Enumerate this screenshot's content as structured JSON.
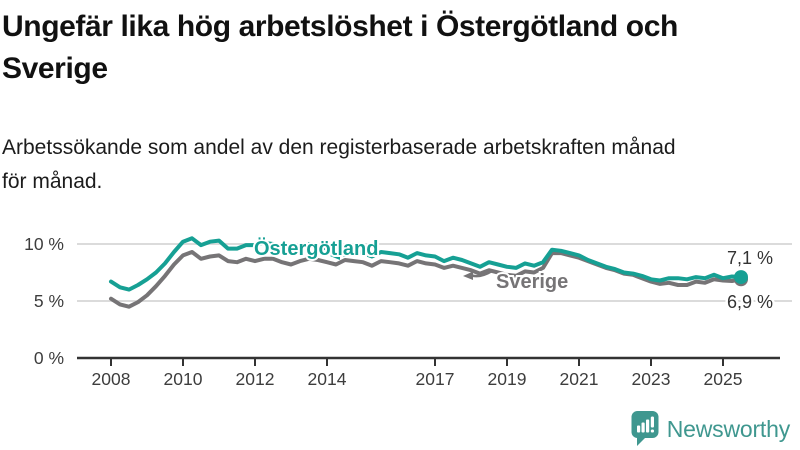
{
  "header": {
    "title_lines": [
      "Ungefär lika hög arbetslöshet i Östergötland och",
      "Sverige"
    ],
    "subtitle_lines": [
      "Arbetssökande som andel av den registerbaserade arbetskraften månad",
      "för månad."
    ]
  },
  "chart_data": {
    "type": "line",
    "grid": "horizontal",
    "legend_position": "inline-labels",
    "xlim": [
      2007.8,
      2026.1
    ],
    "ylim": [
      0,
      11.6
    ],
    "y_ticks": [
      {
        "value": 0,
        "label": "0 %"
      },
      {
        "value": 5,
        "label": "5 %"
      },
      {
        "value": 10,
        "label": "10 %"
      }
    ],
    "x_ticks": [
      {
        "year": 2008,
        "label": "2008"
      },
      {
        "year": 2010,
        "label": "2010"
      },
      {
        "year": 2012,
        "label": "2012"
      },
      {
        "year": 2014,
        "label": "2014"
      },
      {
        "year": 2017,
        "label": "2017"
      },
      {
        "year": 2019,
        "label": "2019"
      },
      {
        "year": 2021,
        "label": "2021"
      },
      {
        "year": 2023,
        "label": "2023"
      },
      {
        "year": 2025,
        "label": "2025"
      }
    ],
    "x": [
      2008,
      2008.25,
      2008.5,
      2008.75,
      2009,
      2009.25,
      2009.5,
      2009.75,
      2010,
      2010.25,
      2010.5,
      2010.75,
      2011,
      2011.25,
      2011.5,
      2011.75,
      2012,
      2012.25,
      2012.5,
      2012.75,
      2013,
      2013.25,
      2013.5,
      2013.75,
      2014,
      2014.25,
      2014.5,
      2014.75,
      2015,
      2015.25,
      2015.5,
      2015.75,
      2016,
      2016.25,
      2016.5,
      2016.75,
      2017,
      2017.25,
      2017.5,
      2017.75,
      2018,
      2018.25,
      2018.5,
      2018.75,
      2019,
      2019.25,
      2019.5,
      2019.75,
      2020,
      2020.25,
      2020.5,
      2020.75,
      2021,
      2021.25,
      2021.5,
      2021.75,
      2022,
      2022.25,
      2022.5,
      2022.75,
      2023,
      2023.25,
      2023.5,
      2023.75,
      2024,
      2024.25,
      2024.5,
      2024.75,
      2025,
      2025.25,
      2025.5
    ],
    "series": [
      {
        "name": "Östergötland",
        "color": "#16a094",
        "end_label": "7,1 %",
        "end_value": 7.1,
        "values": [
          6.7,
          6.2,
          6.0,
          6.4,
          6.9,
          7.5,
          8.3,
          9.3,
          10.2,
          10.5,
          9.9,
          10.2,
          10.3,
          9.6,
          9.6,
          9.9,
          9.9,
          10.1,
          10.0,
          9.7,
          9.6,
          9.9,
          10.0,
          9.8,
          9.6,
          9.2,
          9.5,
          9.4,
          9.2,
          8.9,
          9.3,
          9.2,
          9.1,
          8.8,
          9.2,
          9.0,
          8.9,
          8.5,
          8.8,
          8.6,
          8.3,
          8.0,
          8.4,
          8.2,
          8.0,
          7.9,
          8.3,
          8.1,
          8.4,
          9.5,
          9.4,
          9.2,
          9.0,
          8.6,
          8.3,
          8.0,
          7.8,
          7.5,
          7.4,
          7.2,
          6.9,
          6.8,
          7.0,
          7.0,
          6.9,
          7.1,
          7.0,
          7.3,
          7.0,
          7.15,
          7.1
        ]
      },
      {
        "name": "Sverige",
        "color": "#767476",
        "end_label": "6,9 %",
        "end_value": 6.9,
        "values": [
          5.2,
          4.7,
          4.5,
          4.9,
          5.5,
          6.3,
          7.2,
          8.2,
          9.0,
          9.3,
          8.7,
          8.9,
          9.0,
          8.5,
          8.4,
          8.7,
          8.5,
          8.7,
          8.7,
          8.4,
          8.2,
          8.5,
          8.7,
          8.6,
          8.4,
          8.2,
          8.6,
          8.5,
          8.4,
          8.1,
          8.5,
          8.4,
          8.3,
          8.1,
          8.5,
          8.3,
          8.2,
          7.9,
          8.1,
          7.9,
          7.7,
          7.4,
          7.7,
          7.5,
          7.3,
          7.2,
          7.6,
          7.5,
          7.9,
          9.2,
          9.2,
          9.0,
          8.8,
          8.5,
          8.2,
          7.9,
          7.7,
          7.4,
          7.3,
          7.0,
          6.7,
          6.5,
          6.6,
          6.4,
          6.4,
          6.7,
          6.6,
          6.9,
          6.8,
          6.75,
          6.9
        ]
      }
    ]
  },
  "footer": {
    "brand": "Newsworthy",
    "brand_color": "#3f978f"
  }
}
